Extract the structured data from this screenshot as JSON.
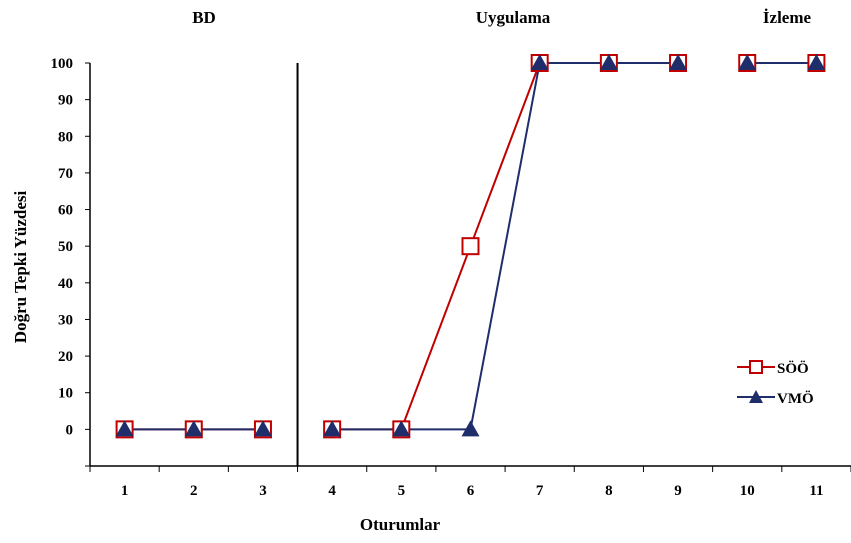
{
  "chart_data": {
    "type": "line",
    "phase_labels": [
      "BD",
      "Uygulama",
      "İzleme"
    ],
    "xlabel": "Oturumlar",
    "ylabel": "Doğru Tepki Yüzdesi",
    "categories": [
      "1",
      "2",
      "3",
      "4",
      "5",
      "6",
      "7",
      "8",
      "9",
      "10",
      "11"
    ],
    "yticks": [
      "0",
      "10",
      "20",
      "30",
      "40",
      "50",
      "60",
      "70",
      "80",
      "90",
      "100"
    ],
    "ylim": [
      -10,
      100
    ],
    "grid": false,
    "legend_position": "right",
    "series": [
      {
        "name": "SÖÖ",
        "color": "#c00000",
        "marker": "square-open",
        "values": [
          0,
          0,
          0,
          0,
          0,
          50,
          100,
          100,
          100,
          100,
          100
        ],
        "segments": [
          [
            1,
            3
          ],
          [
            4,
            9
          ],
          [
            10,
            11
          ]
        ]
      },
      {
        "name": "VMÖ",
        "color": "#1f2d6b",
        "marker": "triangle-filled",
        "values": [
          0,
          0,
          0,
          0,
          0,
          0,
          100,
          100,
          100,
          100,
          100
        ],
        "segments": [
          [
            1,
            3
          ],
          [
            4,
            9
          ],
          [
            10,
            11
          ]
        ]
      }
    ],
    "phase_change_lines_after": [
      3
    ]
  }
}
